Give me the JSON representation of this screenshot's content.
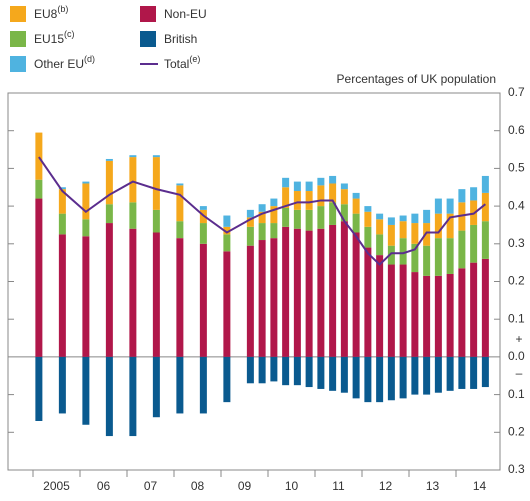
{
  "chart_data": {
    "type": "bar",
    "y_label": "Percentages of UK population",
    "annotations": [
      "+",
      "–"
    ],
    "categories": [
      null,
      "2005",
      null,
      null,
      null,
      "06",
      null,
      null,
      null,
      "07",
      null,
      null,
      null,
      "08",
      null,
      null,
      null,
      "09",
      null,
      null,
      null,
      "10",
      null,
      null,
      null,
      "11",
      null,
      null,
      null,
      "12",
      null,
      null,
      null,
      "13",
      null,
      null,
      null,
      "14",
      null,
      null
    ],
    "series": [
      {
        "name": "Non-EU",
        "color": "#b0174a",
        "values": [
          0.42,
          null,
          0.325,
          null,
          0.32,
          null,
          0.355,
          null,
          0.34,
          null,
          0.33,
          null,
          0.315,
          null,
          0.3,
          null,
          0.28,
          null,
          0.295,
          0.31,
          0.315,
          0.345,
          0.34,
          0.335,
          0.34,
          0.35,
          0.36,
          0.33,
          0.29,
          0.27,
          0.245,
          0.245,
          0.225,
          0.215,
          0.215,
          0.22,
          0.235,
          0.25,
          0.26,
          null
        ]
      },
      {
        "name": "EU15(c)",
        "color": "#7ab648",
        "values": [
          0.05,
          null,
          0.055,
          null,
          0.045,
          null,
          0.05,
          null,
          0.07,
          null,
          0.06,
          null,
          0.045,
          null,
          0.055,
          null,
          0.045,
          null,
          0.05,
          0.045,
          0.04,
          0.05,
          0.05,
          0.055,
          0.06,
          0.06,
          0.045,
          0.05,
          0.055,
          0.055,
          0.05,
          0.07,
          0.075,
          0.08,
          0.1,
          0.095,
          0.1,
          0.1,
          0.1,
          null
        ]
      },
      {
        "name": "EU8(b)",
        "color": "#f5a81c",
        "values": [
          0.125,
          null,
          0.065,
          null,
          0.095,
          null,
          0.115,
          null,
          0.12,
          null,
          0.14,
          null,
          0.095,
          null,
          0.035,
          null,
          0.02,
          null,
          0.025,
          0.03,
          0.045,
          0.055,
          0.05,
          0.05,
          0.055,
          0.05,
          0.04,
          0.04,
          0.04,
          0.04,
          0.055,
          0.045,
          0.055,
          0.06,
          0.065,
          0.065,
          0.075,
          0.065,
          0.075,
          null
        ]
      },
      {
        "name": "Other EU(d)",
        "color": "#4fb3e0",
        "values": [
          0,
          null,
          0.005,
          null,
          0.005,
          null,
          0.005,
          null,
          0.005,
          null,
          0.005,
          null,
          0.005,
          null,
          0.01,
          null,
          0.03,
          null,
          0.02,
          0.02,
          0.02,
          0.025,
          0.025,
          0.025,
          0.02,
          0.02,
          0.015,
          0.015,
          0.015,
          0.015,
          0.02,
          0.015,
          0.025,
          0.035,
          0.04,
          0.04,
          0.035,
          0.035,
          0.045,
          null
        ]
      },
      {
        "name": "British",
        "color": "#0a5a8f",
        "values": [
          -0.17,
          null,
          -0.15,
          null,
          -0.18,
          null,
          -0.21,
          null,
          -0.21,
          null,
          -0.16,
          null,
          -0.15,
          null,
          -0.15,
          null,
          -0.12,
          null,
          -0.07,
          -0.07,
          -0.065,
          -0.075,
          -0.075,
          -0.08,
          -0.085,
          -0.09,
          -0.095,
          -0.11,
          -0.12,
          -0.12,
          -0.115,
          -0.11,
          -0.1,
          -0.1,
          -0.095,
          -0.09,
          -0.085,
          -0.085,
          -0.08,
          null
        ]
      },
      {
        "name": "Total(e)",
        "color": "#5b2d8e",
        "kind": "line",
        "values": [
          0.53,
          null,
          0.44,
          null,
          0.385,
          null,
          0.43,
          null,
          0.465,
          null,
          0.445,
          null,
          0.43,
          null,
          0.375,
          null,
          0.33,
          null,
          0.365,
          0.38,
          0.39,
          0.4,
          0.41,
          0.41,
          0.415,
          0.415,
          0.36,
          0.32,
          0.275,
          0.245,
          0.275,
          0.275,
          0.285,
          0.33,
          0.33,
          0.37,
          0.375,
          0.38,
          0.405,
          null
        ]
      }
    ],
    "ylim": [
      -0.3,
      0.7
    ],
    "yticks": [
      {
        "value": -0.3,
        "label": "0.3"
      },
      {
        "value": -0.2,
        "label": "0.2"
      },
      {
        "value": -0.1,
        "label": "0.1"
      },
      {
        "value": 0,
        "label": "0.0"
      },
      0.1,
      0.2,
      0.3,
      0.4,
      0.5,
      0.6,
      0.7
    ],
    "legend_order": [
      2,
      1,
      3,
      0,
      4,
      5
    ]
  }
}
